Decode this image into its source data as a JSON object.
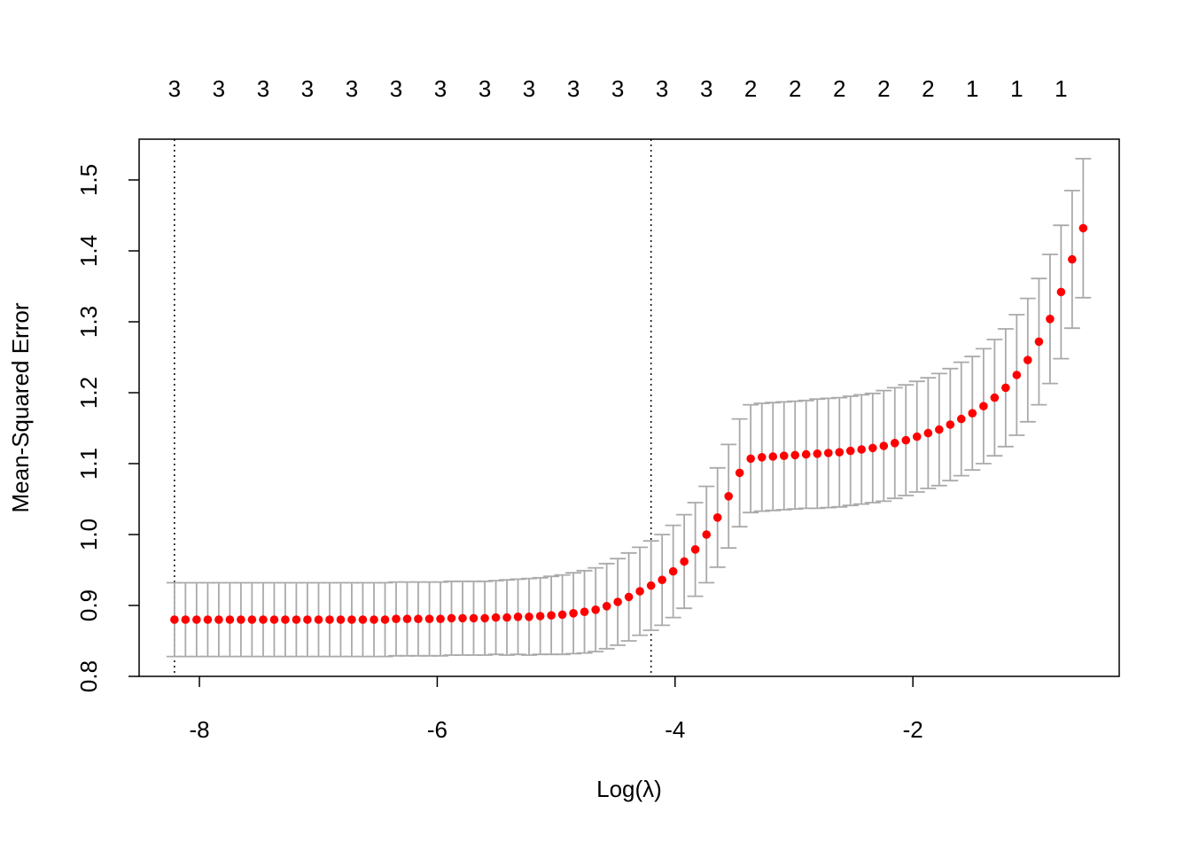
{
  "chart_data": {
    "type": "errorbar_scatter",
    "xlabel": "Log(λ)",
    "ylabel": "Mean-Squared Error",
    "xlim": [
      -8.507,
      -0.265
    ],
    "ylim": [
      0.8,
      1.5575
    ],
    "xticks": [
      -8,
      -6,
      -4,
      -2
    ],
    "yticks": [
      0.8,
      0.9,
      1.0,
      1.1,
      1.2,
      1.3,
      1.4,
      1.5
    ],
    "color": "#ff0000",
    "error_color": "#aaaaaa",
    "x": [
      -8.21,
      -8.117,
      -8.024,
      -7.93,
      -7.837,
      -7.744,
      -7.651,
      -7.558,
      -7.464,
      -7.371,
      -7.278,
      -7.185,
      -7.092,
      -6.998,
      -6.905,
      -6.812,
      -6.719,
      -6.626,
      -6.532,
      -6.439,
      -6.346,
      -6.253,
      -6.16,
      -6.066,
      -5.973,
      -5.88,
      -5.787,
      -5.694,
      -5.6,
      -5.507,
      -5.414,
      -5.321,
      -5.228,
      -5.134,
      -5.041,
      -4.948,
      -4.855,
      -4.762,
      -4.668,
      -4.575,
      -4.482,
      -4.389,
      -4.296,
      -4.202,
      -4.109,
      -4.016,
      -3.923,
      -3.83,
      -3.736,
      -3.643,
      -3.55,
      -3.457,
      -3.364,
      -3.27,
      -3.177,
      -3.084,
      -2.991,
      -2.898,
      -2.804,
      -2.711,
      -2.618,
      -2.525,
      -2.432,
      -2.338,
      -2.245,
      -2.152,
      -2.059,
      -1.966,
      -1.872,
      -1.779,
      -1.686,
      -1.593,
      -1.5,
      -1.406,
      -1.313,
      -1.22,
      -1.127,
      -1.034,
      -0.94,
      -0.847,
      -0.754,
      -0.661,
      -0.568
    ],
    "values": [
      0.88,
      0.88,
      0.88,
      0.88,
      0.88,
      0.88,
      0.88,
      0.88,
      0.88,
      0.88,
      0.88,
      0.88,
      0.88,
      0.88,
      0.88,
      0.88,
      0.88,
      0.88,
      0.88,
      0.88,
      0.881,
      0.881,
      0.881,
      0.881,
      0.881,
      0.882,
      0.882,
      0.882,
      0.882,
      0.883,
      0.883,
      0.884,
      0.884,
      0.885,
      0.886,
      0.887,
      0.889,
      0.891,
      0.894,
      0.899,
      0.905,
      0.912,
      0.92,
      0.928,
      0.936,
      0.948,
      0.962,
      0.979,
      1.0,
      1.024,
      1.054,
      1.087,
      1.107,
      1.109,
      1.11,
      1.111,
      1.112,
      1.113,
      1.114,
      1.115,
      1.116,
      1.118,
      1.12,
      1.122,
      1.125,
      1.129,
      1.133,
      1.138,
      1.143,
      1.148,
      1.155,
      1.163,
      1.171,
      1.181,
      1.193,
      1.207,
      1.225,
      1.246,
      1.272,
      1.304,
      1.342,
      1.388,
      1.432
    ],
    "errors": [
      0.052,
      0.052,
      0.052,
      0.052,
      0.052,
      0.052,
      0.052,
      0.052,
      0.052,
      0.052,
      0.052,
      0.052,
      0.052,
      0.052,
      0.052,
      0.052,
      0.052,
      0.052,
      0.052,
      0.052,
      0.052,
      0.052,
      0.052,
      0.052,
      0.052,
      0.052,
      0.052,
      0.052,
      0.052,
      0.052,
      0.053,
      0.053,
      0.054,
      0.054,
      0.055,
      0.056,
      0.057,
      0.058,
      0.059,
      0.06,
      0.061,
      0.062,
      0.062,
      0.063,
      0.064,
      0.065,
      0.066,
      0.066,
      0.068,
      0.07,
      0.073,
      0.076,
      0.076,
      0.076,
      0.076,
      0.076,
      0.076,
      0.076,
      0.077,
      0.077,
      0.077,
      0.077,
      0.077,
      0.077,
      0.078,
      0.078,
      0.078,
      0.078,
      0.078,
      0.079,
      0.079,
      0.08,
      0.08,
      0.081,
      0.082,
      0.083,
      0.085,
      0.087,
      0.089,
      0.091,
      0.094,
      0.097,
      0.098
    ],
    "vlines": [
      -8.21,
      -4.202
    ],
    "top_labels": [
      3,
      3,
      3,
      3,
      3,
      3,
      3,
      3,
      3,
      3,
      3,
      3,
      3,
      2,
      2,
      2,
      2,
      2,
      1,
      1,
      1
    ]
  }
}
